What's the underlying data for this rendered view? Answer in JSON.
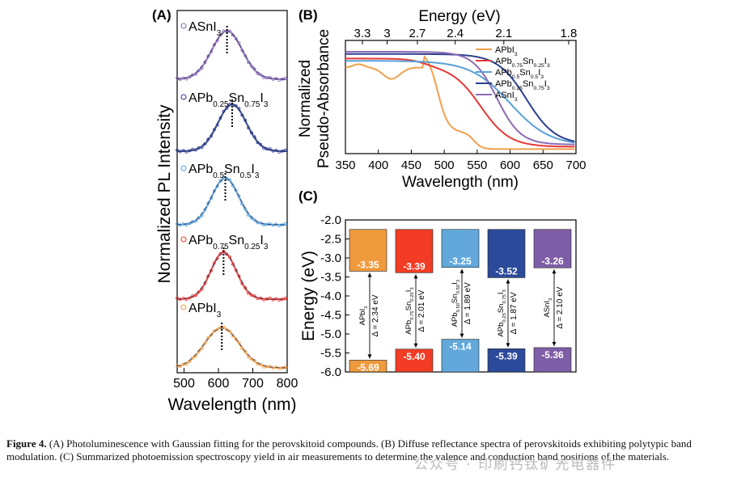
{
  "panelA": {
    "label": "(A)",
    "xlabel": "Wavelength (nm)",
    "ylabel": "Normalized PL Intensity",
    "xticks": [
      "500",
      "600",
      "700",
      "800"
    ],
    "xlim": [
      480,
      800
    ],
    "curves": [
      {
        "name": "ASnI",
        "sub": "3",
        "color": "#8e6bb5",
        "peak": 625,
        "width": 62
      },
      {
        "name": "APb",
        "sub": "0.25",
        "mid": "Sn",
        "sub2": "0.75",
        "tail": "I",
        "sub3": "3",
        "color": "#2c3f8f",
        "peak": 640,
        "width": 58
      },
      {
        "name": "APb",
        "sub": "0.5",
        "mid": "Sn",
        "sub2": "0.5",
        "tail": "I",
        "sub3": "3",
        "color": "#5aa0d8",
        "peak": 620,
        "width": 55
      },
      {
        "name": "APb",
        "sub": "0.75",
        "mid": "Sn",
        "sub2": "0.25",
        "tail": "I",
        "sub3": "3",
        "color": "#e53935",
        "peak": 615,
        "width": 52
      },
      {
        "name": "APbI",
        "sub": "3",
        "color": "#f0a04b",
        "peak": 610,
        "width": 70
      }
    ]
  },
  "panelB": {
    "label": "(B)",
    "top_axis_label": "Energy (eV)",
    "top_ticks": [
      "3.3",
      "3",
      "2.7",
      "2.4",
      "2.1",
      "1.8"
    ],
    "top_tick_values": [
      3.3,
      3.0,
      2.7,
      2.4,
      2.1,
      1.8
    ],
    "xlabel": "Wavelength (nm)",
    "ylabel1": "Normalized",
    "ylabel2": "Pseudo-Absorbance",
    "xticks": [
      "350",
      "400",
      "450",
      "500",
      "550",
      "600",
      "650",
      "700"
    ],
    "xlim": [
      350,
      700
    ],
    "legend": [
      {
        "name": "APbI",
        "sub": "3",
        "color": "#f0a04b"
      },
      {
        "name": "APb",
        "sub": "0.75",
        "mid": "Sn",
        "sub2": "0.25",
        "tail": "I",
        "sub3": "3",
        "color": "#e53935"
      },
      {
        "name": "APb",
        "sub": "0.5",
        "mid": "Sn",
        "sub2": "0.5",
        "tail": "I",
        "sub3": "3",
        "color": "#5aa0d8"
      },
      {
        "name": "APb",
        "sub": "0.25",
        "mid": "Sn",
        "sub2": "0.75",
        "tail": "I",
        "sub3": "3",
        "color": "#2c3f8f"
      },
      {
        "name": "ASnI",
        "sub": "3",
        "color": "#8e6bb5"
      }
    ]
  },
  "panelC": {
    "label": "(C)",
    "ylabel": "Energy (eV)",
    "yticks": [
      "-2.0",
      "-2.5",
      "-3.0",
      "-3.5",
      "-4.0",
      "-4.5",
      "-5.0",
      "-5.5",
      "-6.0"
    ],
    "ylim": [
      -6.0,
      -2.0
    ],
    "bars": [
      {
        "cb": -3.35,
        "vb": -5.69,
        "cb_label": "-3.35",
        "vb_label": "-5.69",
        "color": "#ef9a3d",
        "name": "APbI",
        "sub": "3",
        "gap": "Δ = 2.34 eV"
      },
      {
        "cb": -3.39,
        "vb": -5.4,
        "cb_label": "-3.39",
        "vb_label": "-5.40",
        "color": "#f23c25",
        "name": "APb",
        "sub": "0.75",
        "mid": "Sn",
        "sub2": "0.25",
        "tail": "I",
        "sub3": "3",
        "gap": "Δ = 2.01 eV"
      },
      {
        "cb": -3.25,
        "vb": -5.14,
        "cb_label": "-3.25",
        "vb_label": "-5.14",
        "color": "#62a8db",
        "name": "APb",
        "sub": "0.50",
        "mid": "Sn",
        "sub2": "0.50",
        "tail": "I",
        "sub3": "3",
        "gap": "Δ = 1.89 eV"
      },
      {
        "cb": -3.52,
        "vb": -5.39,
        "cb_label": "-3.52",
        "vb_label": "-5.39",
        "color": "#2c4a9a",
        "name": "APb",
        "sub": "0.25",
        "mid": "Sn",
        "sub2": "0.75",
        "tail": "I",
        "sub3": "3",
        "gap": "Δ = 1.87 eV"
      },
      {
        "cb": -3.26,
        "vb": -5.36,
        "cb_label": "-3.26",
        "vb_label": "-5.36",
        "color": "#7e5ea6",
        "name": "ASnI",
        "sub": "3",
        "gap": "Δ = 2.10 eV"
      }
    ]
  },
  "caption": {
    "lead": "Figure 4.",
    "text": " (A) Photoluminescence with Gaussian fitting for the perovskitoid compounds. (B) Diffuse reflectance spectra of perovskitoids exhibiting polytypic band modulation. (C) Summarized photoemission spectroscopy yield in air measurements to determine the valence and conduction band positions of the materials."
  },
  "watermark": "公众号 · 印刷钙钛矿光电器件"
}
